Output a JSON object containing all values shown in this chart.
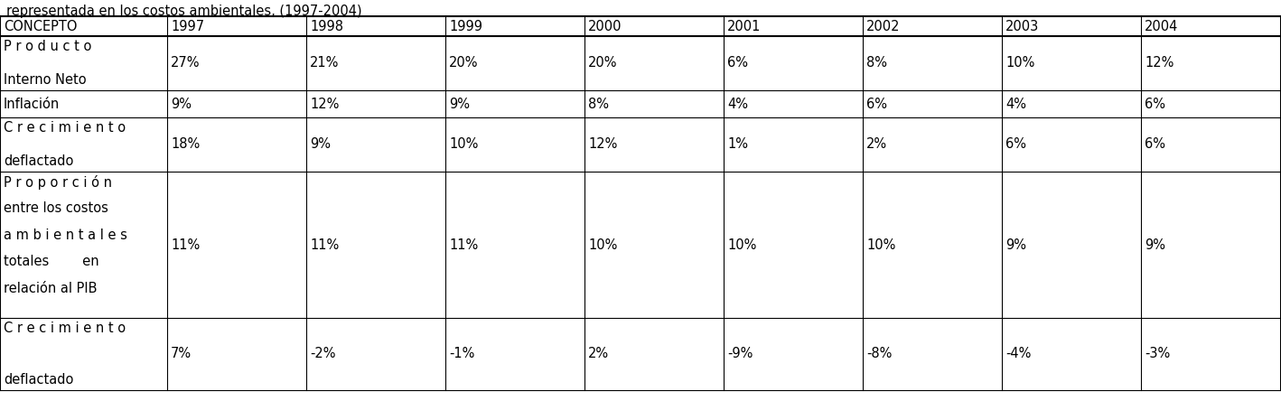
{
  "title_line": "representada en los costos ambientales, (1997-2004)",
  "columns": [
    "CONCEPTO",
    "1997",
    "1998",
    "1999",
    "2000",
    "2001",
    "2002",
    "2003",
    "2004"
  ],
  "rows": [
    {
      "concept_lines": [
        "P r o d u c t o",
        "Interno Neto"
      ],
      "values": [
        "27%",
        "21%",
        "20%",
        "20%",
        "6%",
        "8%",
        "10%",
        "12%"
      ]
    },
    {
      "concept_lines": [
        "Inflación"
      ],
      "values": [
        "9%",
        "12%",
        "9%",
        "8%",
        "4%",
        "6%",
        "4%",
        "6%"
      ]
    },
    {
      "concept_lines": [
        "C r e c i m i e n t o",
        "deflactado"
      ],
      "values": [
        "18%",
        "9%",
        "10%",
        "12%",
        "1%",
        "2%",
        "6%",
        "6%"
      ]
    },
    {
      "concept_lines": [
        "P r o p o r c i ó n",
        "entre los costos",
        "a m b i e n t a l e s",
        "totales        en",
        "relación al PIB"
      ],
      "values": [
        "11%",
        "11%",
        "11%",
        "10%",
        "10%",
        "10%",
        "9%",
        "9%"
      ]
    },
    {
      "concept_lines": [
        "C r e c i m i e n t o",
        "deflactado"
      ],
      "values": [
        "7%",
        "-2%",
        "-1%",
        "2%",
        "-9%",
        "-8%",
        "-4%",
        "-3%"
      ]
    }
  ],
  "fig_width": 14.18,
  "fig_height": 4.44,
  "dpi": 100,
  "bg_color": "#ffffff",
  "text_color": "#000000",
  "font_size": 10.5,
  "title_font_size": 10.5
}
